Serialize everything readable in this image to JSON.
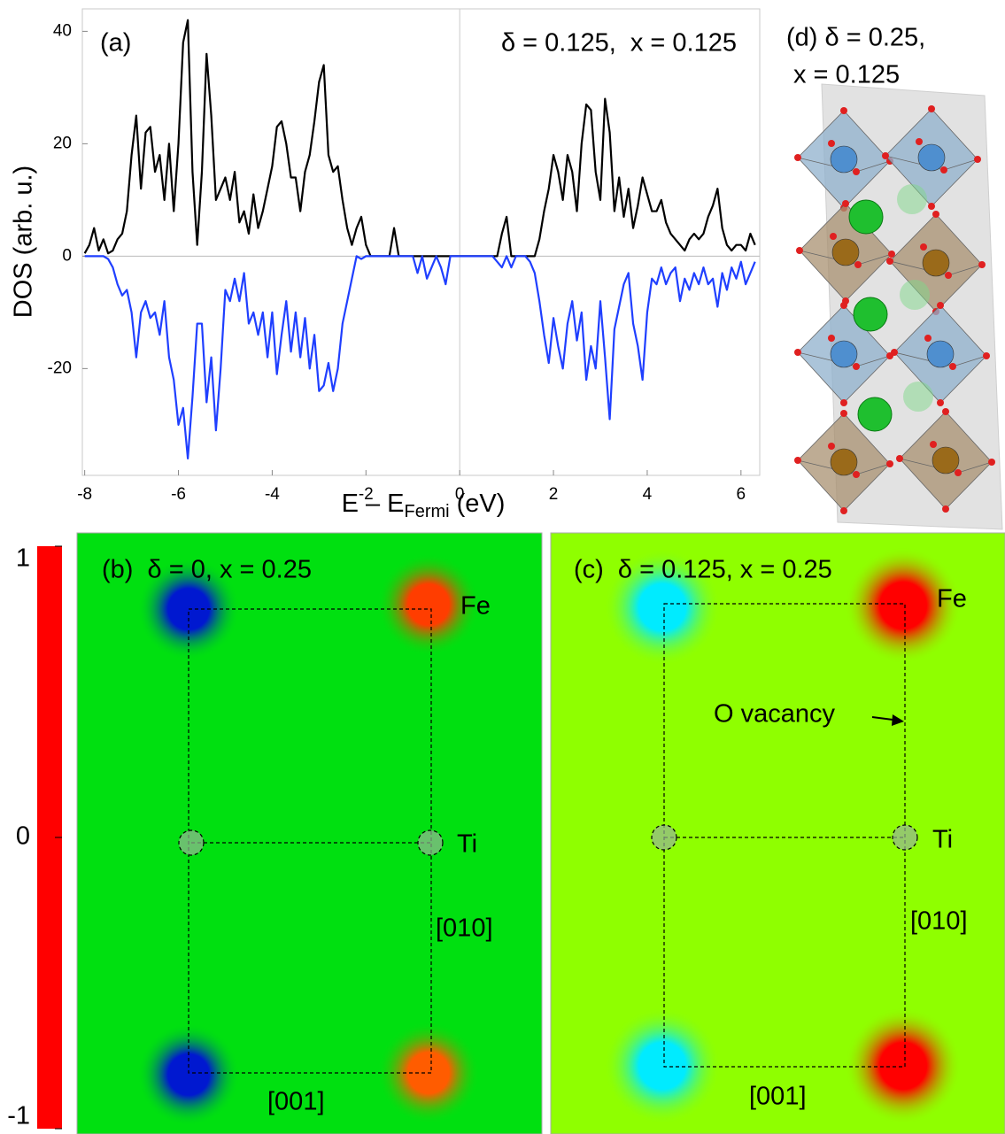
{
  "chart_data": [
    {
      "type": "line",
      "annotations": [
        "(a)",
        "δ = 0.125,  x = 0.125"
      ],
      "ylabel": "DOS (arb. u.)",
      "xlabel": "E – E",
      "xlabel_sub": "Fermi",
      "xlabel_unit": "(eV)",
      "xlim": [
        -8.05,
        6.4
      ],
      "ylim": [
        -39,
        44
      ],
      "xticks": [
        -8,
        -6,
        -4,
        -2,
        0,
        2,
        4,
        6
      ],
      "yticks": [
        -20,
        0,
        20,
        40
      ],
      "x": [
        -8.0,
        -7.9,
        -7.8,
        -7.7,
        -7.6,
        -7.5,
        -7.4,
        -7.3,
        -7.2,
        -7.1,
        -7.0,
        -6.9,
        -6.8,
        -6.7,
        -6.6,
        -6.5,
        -6.4,
        -6.3,
        -6.2,
        -6.1,
        -6.0,
        -5.9,
        -5.8,
        -5.7,
        -5.6,
        -5.5,
        -5.4,
        -5.3,
        -5.2,
        -5.1,
        -5.0,
        -4.9,
        -4.8,
        -4.7,
        -4.6,
        -4.5,
        -4.4,
        -4.3,
        -4.2,
        -4.1,
        -4.0,
        -3.9,
        -3.8,
        -3.7,
        -3.6,
        -3.5,
        -3.4,
        -3.3,
        -3.2,
        -3.1,
        -3.0,
        -2.9,
        -2.8,
        -2.7,
        -2.6,
        -2.5,
        -2.4,
        -2.3,
        -2.2,
        -2.1,
        -2.0,
        -1.9,
        -1.8,
        -1.7,
        -1.6,
        -1.5,
        -1.4,
        -1.3,
        -1.2,
        -1.1,
        -1.0,
        -0.9,
        -0.8,
        -0.7,
        -0.6,
        -0.5,
        -0.4,
        -0.3,
        -0.2,
        -0.1,
        0.0,
        0.1,
        0.2,
        0.3,
        0.4,
        0.5,
        0.6,
        0.7,
        0.8,
        0.9,
        1.0,
        1.1,
        1.2,
        1.3,
        1.4,
        1.5,
        1.6,
        1.7,
        1.8,
        1.9,
        2.0,
        2.1,
        2.2,
        2.3,
        2.4,
        2.5,
        2.6,
        2.7,
        2.8,
        2.9,
        3.0,
        3.1,
        3.2,
        3.3,
        3.4,
        3.5,
        3.6,
        3.7,
        3.8,
        3.9,
        4.0,
        4.1,
        4.2,
        4.3,
        4.4,
        4.5,
        4.6,
        4.7,
        4.8,
        4.9,
        5.0,
        5.1,
        5.2,
        5.3,
        5.4,
        5.5,
        5.6,
        5.7,
        5.8,
        5.9,
        6.0,
        6.1,
        6.2,
        6.3
      ],
      "series": [
        {
          "color": "#000000",
          "values": [
            0.5,
            2,
            5,
            1,
            3,
            0.5,
            1,
            3,
            4,
            8,
            18,
            25,
            12,
            22,
            23,
            15,
            18,
            10,
            20,
            8,
            20,
            38,
            42,
            15,
            2,
            15,
            36,
            25,
            10,
            12,
            14,
            10,
            15,
            6,
            8,
            4,
            11,
            5,
            8,
            12,
            16,
            23,
            24,
            20,
            14,
            14,
            8,
            15,
            18,
            24,
            31,
            34,
            18,
            15,
            16,
            10,
            5,
            2,
            5,
            7,
            2,
            0,
            0,
            0,
            0,
            0,
            5,
            0,
            0,
            0,
            0,
            0,
            0,
            0,
            0,
            0,
            0,
            0,
            0,
            0,
            0,
            0,
            0,
            0,
            0,
            0,
            0,
            0,
            0,
            4,
            7,
            0,
            0,
            0,
            0,
            0,
            0,
            3,
            8,
            12,
            18,
            15,
            10,
            18,
            15,
            8,
            20,
            27,
            26,
            15,
            10,
            28,
            22,
            8,
            14,
            7,
            12,
            5,
            9,
            14,
            11,
            8,
            8,
            10,
            6,
            4,
            3,
            2,
            1,
            3,
            4,
            3,
            4,
            7,
            9,
            12,
            5,
            2,
            1,
            2,
            2,
            1,
            4,
            2
          ]
        },
        {
          "color": "#1f3fff",
          "values": [
            0,
            0,
            0,
            0,
            0,
            -0.5,
            -2,
            -5,
            -7,
            -6,
            -10,
            -18,
            -10,
            -8,
            -11,
            -10,
            -14,
            -8,
            -18,
            -22,
            -30,
            -27,
            -36,
            -25,
            -12,
            -12,
            -26,
            -18,
            -31,
            -20,
            -6,
            -8,
            -4,
            -8,
            -3,
            -12,
            -10,
            -14,
            -10,
            -18,
            -10,
            -21,
            -14,
            -8,
            -17,
            -10,
            -18,
            -11,
            -20,
            -14,
            -24,
            -23,
            -19,
            -24,
            -20,
            -12,
            -8,
            -4,
            0,
            -0.5,
            0,
            0,
            0,
            0,
            0,
            0,
            0,
            0,
            0,
            0,
            0,
            -3,
            0,
            -4,
            -2,
            0,
            -2,
            -5,
            0,
            0,
            0,
            0,
            0,
            0,
            0,
            0,
            0,
            0,
            -1,
            -2,
            0,
            -2,
            0,
            0,
            0,
            -1,
            -3,
            -8,
            -14,
            -19,
            -11,
            -16,
            -20,
            -12,
            -8,
            -15,
            -10,
            -22,
            -16,
            -20,
            -8,
            -18,
            -29,
            -13,
            -9,
            -5,
            -3,
            -12,
            -16,
            -22,
            -10,
            -4,
            -5,
            -2,
            -5,
            -3,
            -2,
            -8,
            -4,
            -6,
            -3,
            -5,
            -2,
            -5,
            -4,
            -9,
            -3,
            -6,
            -2,
            -4,
            -1,
            -5,
            -3,
            -1
          ]
        }
      ]
    },
    {
      "type": "colorbar",
      "ylim": [
        -1,
        1
      ],
      "yticks": [
        -1,
        0,
        1
      ],
      "color_stops": [
        {
          "value": -1,
          "color": "#ff0000"
        },
        {
          "value": -0.75,
          "color": "#ff9900"
        },
        {
          "value": -0.55,
          "color": "#ffff00"
        },
        {
          "value": -0.3,
          "color": "#80ff00"
        },
        {
          "value": -0.05,
          "color": "#00e010"
        },
        {
          "value": 0.4,
          "color": "#00ffff"
        },
        {
          "value": 0.8,
          "color": "#0060ff"
        },
        {
          "value": 1,
          "color": "#0000c0"
        }
      ]
    },
    {
      "type": "map",
      "title": "(b)  δ = 0, x = 0.25",
      "background": -0.05,
      "spots": [
        0.95,
        -0.9,
        0.95,
        -0.85
      ],
      "labels": [
        "Fe",
        "Ti",
        "[010]",
        "[001]"
      ]
    },
    {
      "type": "map",
      "title": "(c)  δ = 0.125, x = 0.25",
      "background": -0.33,
      "spots": [
        0.45,
        -1,
        0.45,
        -1
      ],
      "labels": [
        "Fe",
        "O vacancy",
        "Ti",
        "[010]",
        "[001]"
      ]
    }
  ],
  "structure": {
    "title": [
      "(d) δ = 0.25,",
      "x = 0.125"
    ]
  }
}
